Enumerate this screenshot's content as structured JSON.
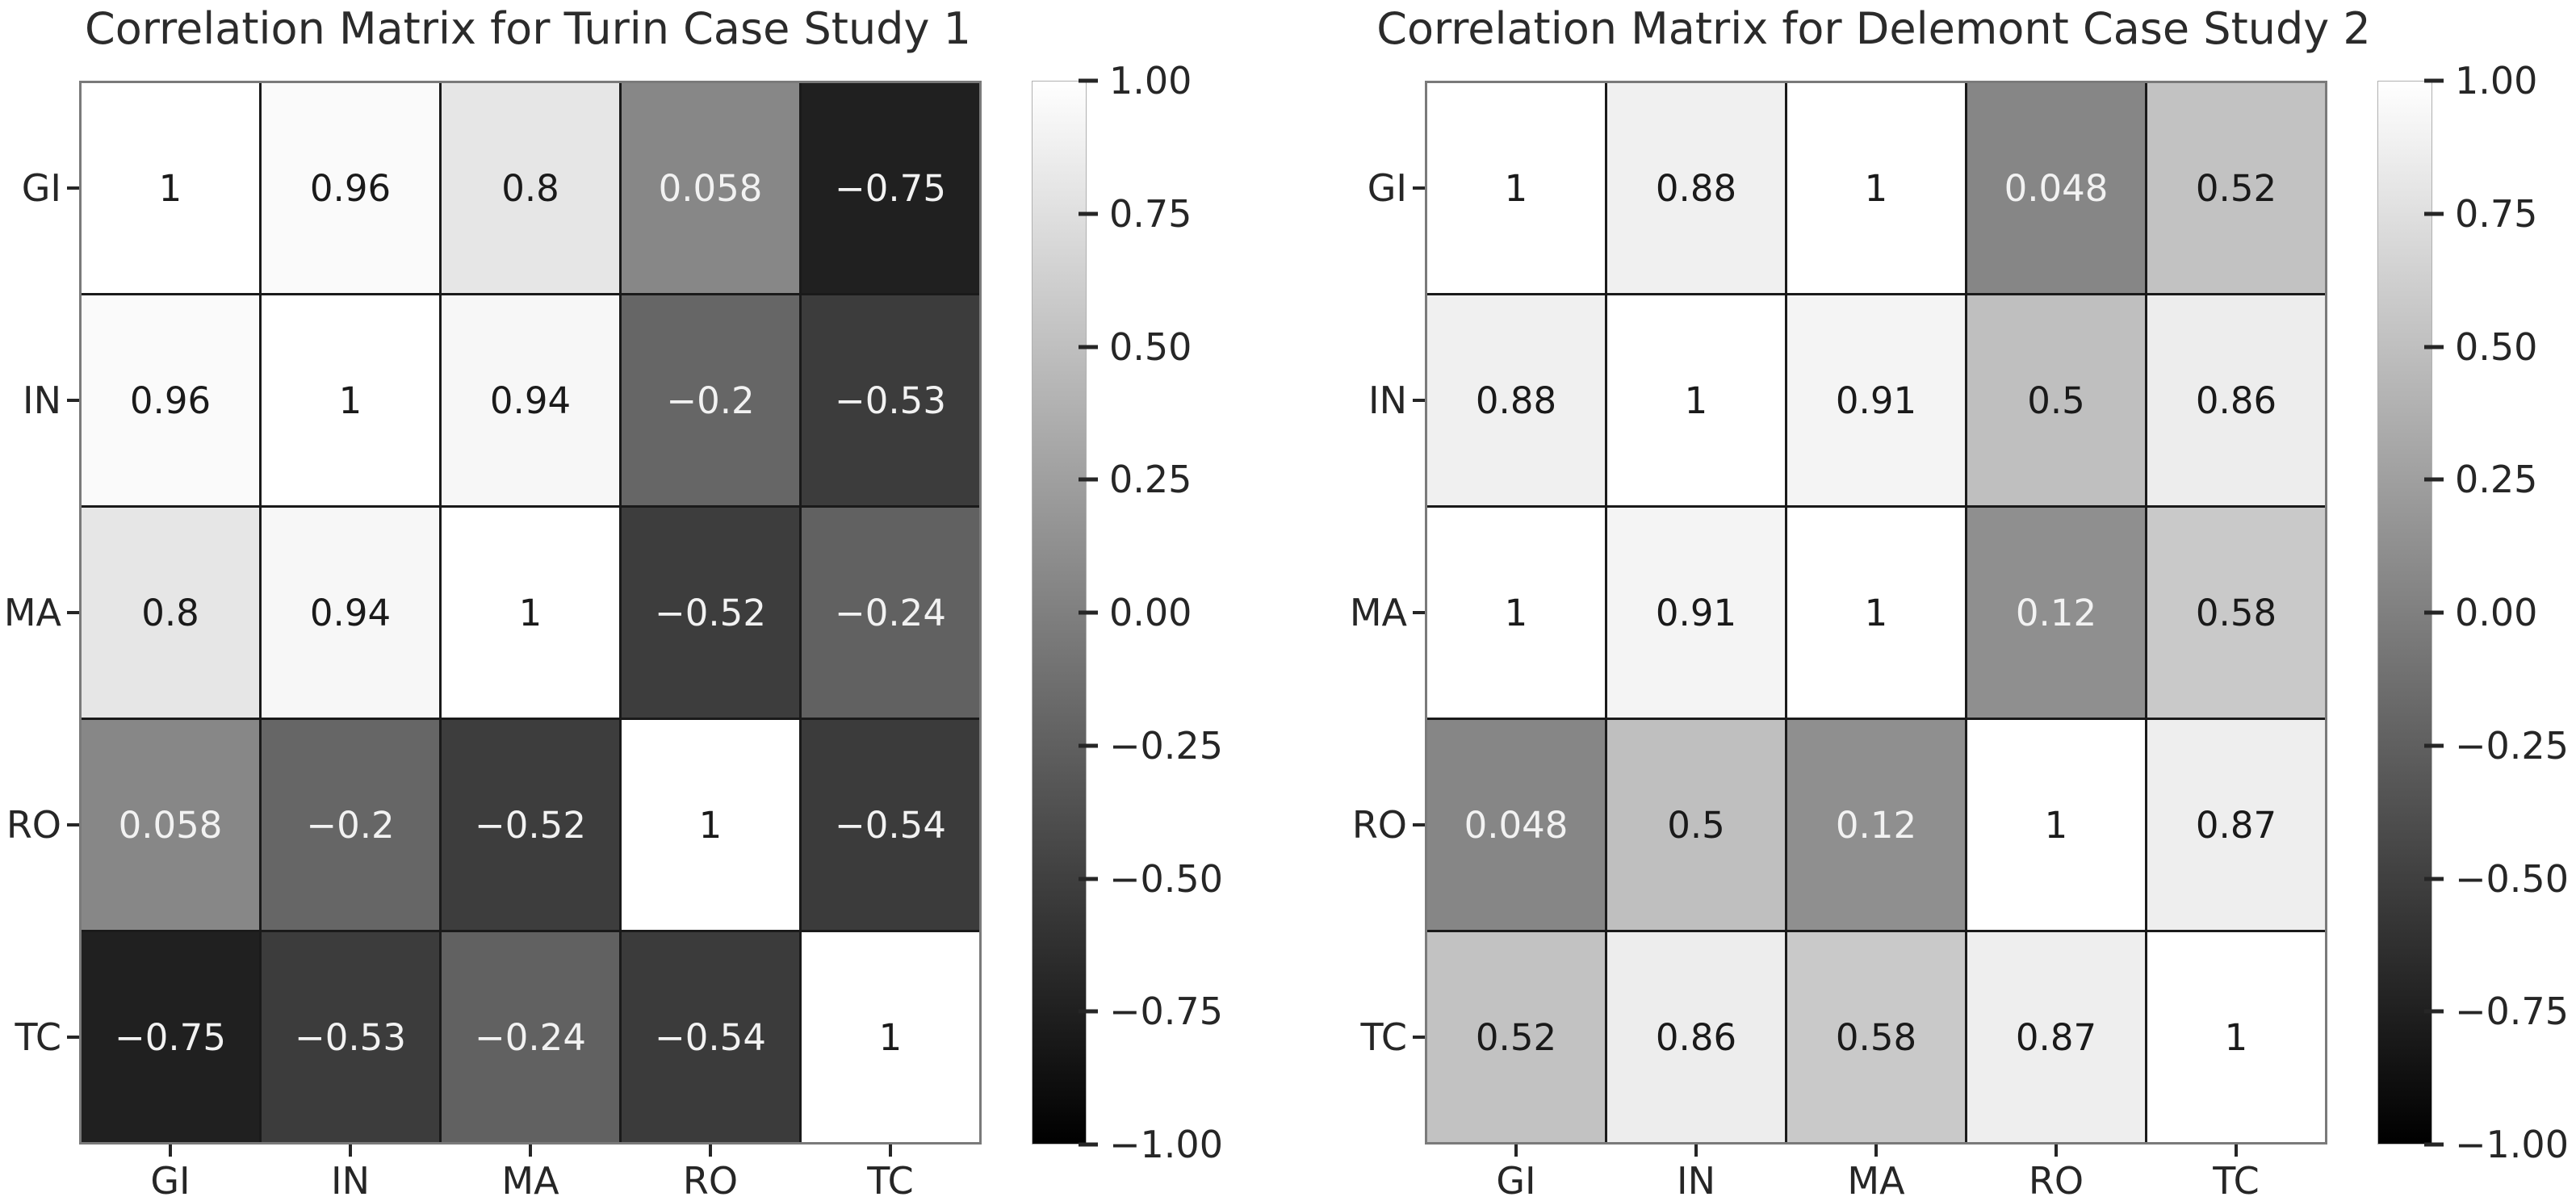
{
  "figure": {
    "background": "#ffffff",
    "text_color": "#262626",
    "gridline_color": "#1a1a1a",
    "spine_color": "#7a7a7a"
  },
  "colorbar": {
    "tick_labels": [
      "1.00",
      "0.75",
      "0.50",
      "0.25",
      "0.00",
      "−0.25",
      "−0.50",
      "−0.75",
      "−1.00"
    ],
    "tick_values": [
      1,
      0.75,
      0.5,
      0.25,
      0,
      -0.25,
      -0.5,
      -0.75,
      -1
    ],
    "top_color": "#ffffff",
    "bottom_color": "#000000"
  },
  "chart_data": [
    {
      "type": "heatmap",
      "title": "Correlation Matrix for Turin Case Study 1",
      "x_categories": [
        "GI",
        "IN",
        "MA",
        "RO",
        "TC"
      ],
      "y_categories": [
        "GI",
        "IN",
        "MA",
        "RO",
        "TC"
      ],
      "colormap": "gray",
      "vmin": -1,
      "vmax": 1,
      "matrix": [
        [
          1,
          0.96,
          0.8,
          0.058,
          -0.75
        ],
        [
          0.96,
          1,
          0.94,
          -0.2,
          -0.53
        ],
        [
          0.8,
          0.94,
          1,
          -0.52,
          -0.24
        ],
        [
          0.058,
          -0.2,
          -0.52,
          1,
          -0.54
        ],
        [
          -0.75,
          -0.53,
          -0.24,
          -0.54,
          1
        ]
      ]
    },
    {
      "type": "heatmap",
      "title": "Correlation Matrix for Delemont Case Study 2",
      "x_categories": [
        "GI",
        "IN",
        "MA",
        "RO",
        "TC"
      ],
      "y_categories": [
        "GI",
        "IN",
        "MA",
        "RO",
        "TC"
      ],
      "colormap": "gray",
      "vmin": -1,
      "vmax": 1,
      "matrix": [
        [
          1,
          0.88,
          1,
          0.048,
          0.52
        ],
        [
          0.88,
          1,
          0.91,
          0.5,
          0.86
        ],
        [
          1,
          0.91,
          1,
          0.12,
          0.58
        ],
        [
          0.048,
          0.5,
          0.12,
          1,
          0.87
        ],
        [
          0.52,
          0.86,
          0.58,
          0.87,
          1
        ]
      ]
    }
  ]
}
